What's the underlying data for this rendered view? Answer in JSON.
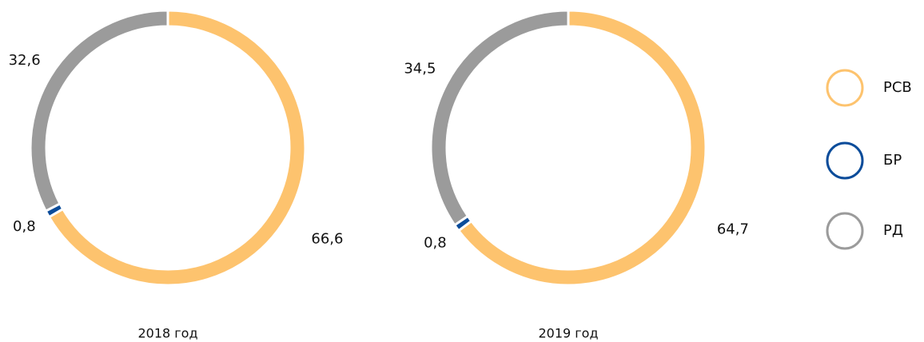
{
  "chart_data": [
    {
      "type": "pie",
      "title": "2018 год",
      "categories": [
        "РСВ",
        "БР",
        "РД"
      ],
      "values": [
        66.6,
        0.8,
        32.6
      ],
      "value_labels": [
        "66,6",
        "0,8",
        "32,6"
      ],
      "colors": [
        "#fdc36e",
        "#0b4c9a",
        "#9b9b9b"
      ]
    },
    {
      "type": "pie",
      "title": "2019 год",
      "categories": [
        "РСВ",
        "БР",
        "РД"
      ],
      "values": [
        64.7,
        0.8,
        34.5
      ],
      "value_labels": [
        "64,7",
        "0,8",
        "34,5"
      ],
      "colors": [
        "#fdc36e",
        "#0b4c9a",
        "#9b9b9b"
      ]
    }
  ]
}
